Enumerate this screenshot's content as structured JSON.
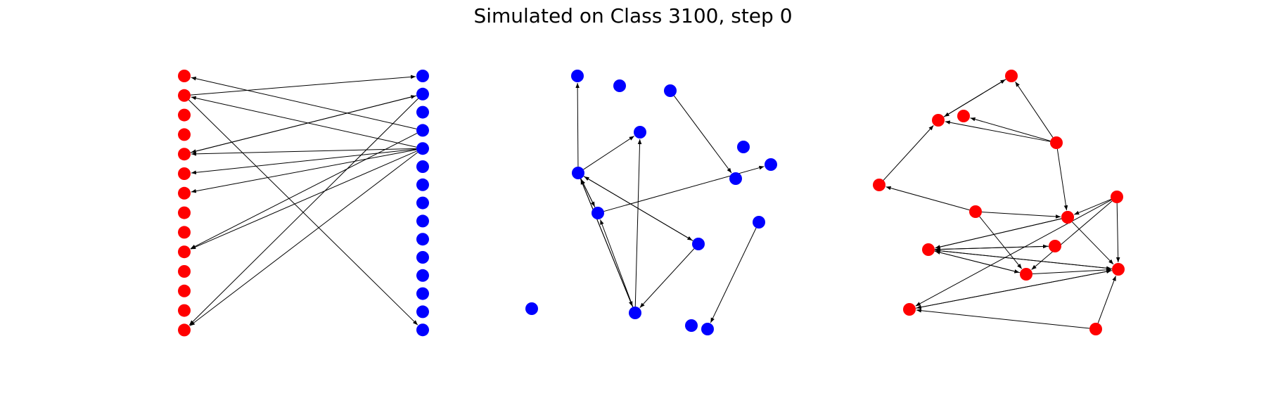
{
  "title": "Simulated on Class 3100, step 0",
  "colors": {
    "red": "#ff0000",
    "blue": "#0000ff",
    "edge": "#000000"
  },
  "graphs": [
    {
      "id": "bipartite",
      "nodes": [
        {
          "id": "r0",
          "color": "red"
        },
        {
          "id": "r1",
          "color": "red"
        },
        {
          "id": "r2",
          "color": "red"
        },
        {
          "id": "r3",
          "color": "red"
        },
        {
          "id": "r4",
          "color": "red"
        },
        {
          "id": "r5",
          "color": "red"
        },
        {
          "id": "r6",
          "color": "red"
        },
        {
          "id": "r7",
          "color": "red"
        },
        {
          "id": "r8",
          "color": "red"
        },
        {
          "id": "r9",
          "color": "red"
        },
        {
          "id": "r10",
          "color": "red"
        },
        {
          "id": "r11",
          "color": "red"
        },
        {
          "id": "r12",
          "color": "red"
        },
        {
          "id": "r13",
          "color": "red"
        },
        {
          "id": "b0",
          "color": "blue"
        },
        {
          "id": "b1",
          "color": "blue"
        },
        {
          "id": "b2",
          "color": "blue"
        },
        {
          "id": "b3",
          "color": "blue"
        },
        {
          "id": "b4",
          "color": "blue"
        },
        {
          "id": "b5",
          "color": "blue"
        },
        {
          "id": "b6",
          "color": "blue"
        },
        {
          "id": "b7",
          "color": "blue"
        },
        {
          "id": "b8",
          "color": "blue"
        },
        {
          "id": "b9",
          "color": "blue"
        },
        {
          "id": "b10",
          "color": "blue"
        },
        {
          "id": "b11",
          "color": "blue"
        },
        {
          "id": "b12",
          "color": "blue"
        },
        {
          "id": "b13",
          "color": "blue"
        },
        {
          "id": "b14",
          "color": "blue"
        }
      ],
      "edges": [
        [
          "r1",
          "b0"
        ],
        [
          "b3",
          "r0"
        ],
        [
          "b4",
          "r1"
        ],
        [
          "r1",
          "b14"
        ],
        [
          "b1",
          "r4"
        ],
        [
          "r4",
          "b1"
        ],
        [
          "b4",
          "r4"
        ],
        [
          "b4",
          "r5"
        ],
        [
          "b4",
          "r6"
        ],
        [
          "b3",
          "r9"
        ],
        [
          "b4",
          "r9"
        ],
        [
          "b4",
          "r13"
        ],
        [
          "b1",
          "r13"
        ]
      ]
    },
    {
      "id": "blue-graph",
      "nodes": [
        {
          "id": "n0",
          "color": "blue"
        },
        {
          "id": "n1",
          "color": "blue"
        },
        {
          "id": "n2",
          "color": "blue"
        },
        {
          "id": "n3",
          "color": "blue"
        },
        {
          "id": "n4",
          "color": "blue"
        },
        {
          "id": "n5",
          "color": "blue"
        },
        {
          "id": "n6",
          "color": "blue"
        },
        {
          "id": "n7",
          "color": "blue"
        },
        {
          "id": "n8",
          "color": "blue"
        },
        {
          "id": "n9",
          "color": "blue"
        },
        {
          "id": "n10",
          "color": "blue"
        },
        {
          "id": "n11",
          "color": "blue"
        },
        {
          "id": "n12",
          "color": "blue"
        },
        {
          "id": "n13",
          "color": "blue"
        },
        {
          "id": "n14",
          "color": "blue"
        }
      ],
      "edges": [
        [
          "n7",
          "n0"
        ],
        [
          "n7",
          "n3"
        ],
        [
          "n2",
          "n6"
        ],
        [
          "n7",
          "n9"
        ],
        [
          "n9",
          "n7"
        ],
        [
          "n7",
          "n10"
        ],
        [
          "n10",
          "n7"
        ],
        [
          "n7",
          "n12"
        ],
        [
          "n12",
          "n7"
        ],
        [
          "n12",
          "n3"
        ],
        [
          "n9",
          "n5"
        ],
        [
          "n12",
          "n9"
        ],
        [
          "n10",
          "n12"
        ],
        [
          "n8",
          "n14"
        ]
      ]
    },
    {
      "id": "red-graph",
      "nodes": [
        {
          "id": "m0",
          "color": "red"
        },
        {
          "id": "m1",
          "color": "red"
        },
        {
          "id": "m2",
          "color": "red"
        },
        {
          "id": "m3",
          "color": "red"
        },
        {
          "id": "m4",
          "color": "red"
        },
        {
          "id": "m5",
          "color": "red"
        },
        {
          "id": "m6",
          "color": "red"
        },
        {
          "id": "m7",
          "color": "red"
        },
        {
          "id": "m8",
          "color": "red"
        },
        {
          "id": "m9",
          "color": "red"
        },
        {
          "id": "m10",
          "color": "red"
        },
        {
          "id": "m11",
          "color": "red"
        },
        {
          "id": "m12",
          "color": "red"
        },
        {
          "id": "m13",
          "color": "red"
        },
        {
          "id": "m14",
          "color": "red"
        }
      ],
      "edges": [
        [
          "m1",
          "m0"
        ],
        [
          "m0",
          "m1"
        ],
        [
          "m3",
          "m0"
        ],
        [
          "m3",
          "m1"
        ],
        [
          "m3",
          "m2"
        ],
        [
          "m4",
          "m1"
        ],
        [
          "m6",
          "m4"
        ],
        [
          "m3",
          "m7"
        ],
        [
          "m6",
          "m11"
        ],
        [
          "m5",
          "m12"
        ],
        [
          "m5",
          "m7"
        ],
        [
          "m5",
          "m11"
        ],
        [
          "m5",
          "m10"
        ],
        [
          "m7",
          "m10"
        ],
        [
          "m7",
          "m9"
        ],
        [
          "m7",
          "m8"
        ],
        [
          "m9",
          "m8"
        ],
        [
          "m8",
          "m13"
        ],
        [
          "m13",
          "m8"
        ],
        [
          "m6",
          "m9"
        ],
        [
          "m10",
          "m12"
        ],
        [
          "m12",
          "m10"
        ],
        [
          "m10",
          "m8"
        ],
        [
          "m8",
          "m10"
        ],
        [
          "m14",
          "m12"
        ],
        [
          "m14",
          "m10"
        ],
        [
          "m11",
          "m8"
        ],
        [
          "m11",
          "m10"
        ],
        [
          "m8",
          "m11"
        ]
      ]
    }
  ]
}
